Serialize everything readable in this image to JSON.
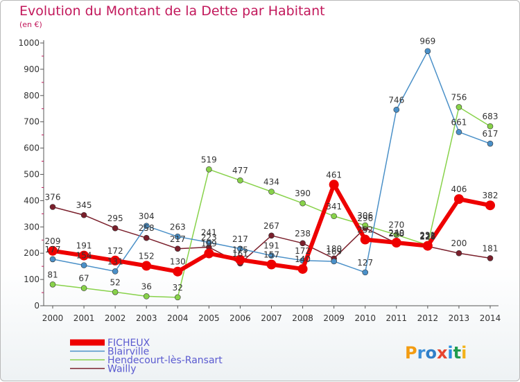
{
  "title": "Evolution du Montant de la Dette par Habitant",
  "subtitle": "(en €)",
  "logo": "Proxiti",
  "chart_data": {
    "type": "line",
    "title": "Evolution du Montant de la Dette par Habitant",
    "ylabel": "(en €)",
    "x": [
      "2000",
      "2001",
      "2002",
      "2003",
      "2004",
      "2005",
      "2006",
      "2007",
      "2008",
      "2009",
      "2010",
      "2011",
      "2012",
      "2013",
      "2014"
    ],
    "ylim": [
      0,
      1000
    ],
    "yticks": [
      0,
      100,
      200,
      300,
      400,
      500,
      600,
      700,
      800,
      900,
      1000
    ],
    "grid": false,
    "legend": "bottom-left",
    "series": [
      {
        "name": "Wailly",
        "color": "#7a1f2b",
        "width": 1.5,
        "marker": 4,
        "values": [
          376,
          345,
          295,
          258,
          217,
          223,
          161,
          267,
          238,
          180,
          296,
          238,
          226,
          200,
          181
        ]
      },
      {
        "name": "Hendecourt-lès-Ransart",
        "color": "#88d24a",
        "width": 1.5,
        "marker": 4,
        "values": [
          81,
          67,
          52,
          36,
          32,
          519,
          477,
          434,
          390,
          341,
          306,
          270,
          231,
          756,
          683
        ]
      },
      {
        "name": "Blairville",
        "color": "#4a90c8",
        "width": 1.5,
        "marker": 4,
        "values": [
          177,
          154,
          131,
          304,
          263,
          241,
          217,
          191,
          172,
          169,
          127,
          746,
          969,
          661,
          617
        ]
      },
      {
        "name": "FICHEUX",
        "color": "#ee0000",
        "width": 6,
        "marker": 7,
        "values": [
          209,
          191,
          172,
          152,
          130,
          199,
          175,
          157,
          140,
          461,
          252,
          240,
          228,
          406,
          382
        ]
      }
    ],
    "legend_order": [
      "FICHEUX",
      "Blairville",
      "Hendecourt-lès-Ransart",
      "Wailly"
    ]
  }
}
